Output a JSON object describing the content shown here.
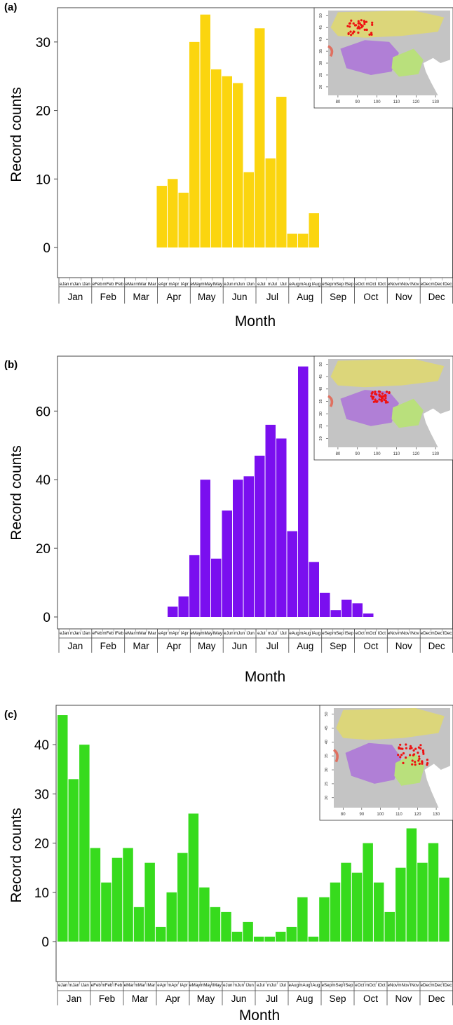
{
  "colors": {
    "series_a": "#FBD50F",
    "series_b": "#7A0FEF",
    "series_c": "#37DB1D",
    "map_background": "#ffffff",
    "map_land": "#c4c4c4",
    "map_yellow_region": "#dcd67a",
    "map_purple_region": "#b07fd6",
    "map_green_region": "#b9e07c",
    "map_points": "#ee1111",
    "map_coast_mark": "#e07060"
  },
  "chart_data": [
    {
      "panel_label": "(a)",
      "type": "bar",
      "xlabel": "Month",
      "ylabel": "Record counts",
      "ylim": [
        0,
        35
      ],
      "yticks": [
        0,
        10,
        20,
        30
      ],
      "months": [
        "Jan",
        "Feb",
        "Mar",
        "Apr",
        "May",
        "Jun",
        "Jul",
        "Aug",
        "Sep",
        "Oct",
        "Nov",
        "Dec"
      ],
      "periods": [
        "eJan",
        "mJan",
        "lJan",
        "eFeb",
        "mFeb",
        "lFeb",
        "eMar",
        "mMar",
        "lMar",
        "eApr",
        "mApr",
        "lApr",
        "eMay",
        "mMay",
        "lMay",
        "eJun",
        "mJun",
        "lJun",
        "eJul",
        "mJul",
        "lJul",
        "eAug",
        "mAug",
        "lAug",
        "eSep",
        "mSep",
        "lSep",
        "eOct",
        "mOct",
        "lOct",
        "eNov",
        "mNov",
        "lNov",
        "eDec",
        "mDec",
        "lDec"
      ],
      "values": [
        0,
        0,
        0,
        0,
        0,
        0,
        0,
        0,
        0,
        9,
        10,
        8,
        30,
        34,
        26,
        25,
        24,
        11,
        32,
        13,
        22,
        2,
        2,
        5,
        0,
        0,
        0,
        0,
        0,
        0,
        0,
        0,
        0,
        0,
        0,
        0
      ],
      "inset_map": {
        "x_ticks": [
          "80",
          "90",
          "100",
          "110",
          "120",
          "130"
        ],
        "y_ticks": [
          "50",
          "45",
          "40",
          "35",
          "30",
          "25",
          "20"
        ]
      }
    },
    {
      "panel_label": "(b)",
      "type": "bar",
      "xlabel": "Month",
      "ylabel": "Record counts",
      "ylim": [
        0,
        76
      ],
      "yticks": [
        0,
        20,
        40,
        60
      ],
      "months": [
        "Jan",
        "Feb",
        "Mar",
        "Apr",
        "May",
        "Jun",
        "Jul",
        "Aug",
        "Sep",
        "Oct",
        "Nov",
        "Dec"
      ],
      "periods": [
        "eJan",
        "mJan",
        "lJan",
        "eFeb",
        "mFeb",
        "lFeb",
        "eMar",
        "mMar",
        "lMar",
        "eApr",
        "mApr",
        "lApr",
        "eMay",
        "mMay",
        "lMay",
        "eJun",
        "mJun",
        "lJun",
        "eJul",
        "mJul",
        "lJul",
        "eAug",
        "mAug",
        "lAug",
        "eSep",
        "mSep",
        "lSep",
        "eOct",
        "mOct",
        "lOct",
        "eNov",
        "mNov",
        "lNov",
        "eDec",
        "mDec",
        "lDec"
      ],
      "values": [
        0,
        0,
        0,
        0,
        0,
        0,
        0,
        0,
        0,
        0,
        3,
        6,
        18,
        40,
        17,
        31,
        40,
        41,
        47,
        56,
        52,
        25,
        73,
        16,
        7,
        2,
        5,
        4,
        1,
        0,
        0,
        0,
        0,
        0,
        0,
        0
      ],
      "inset_map": {
        "x_ticks": [
          "80",
          "90",
          "100",
          "110",
          "120",
          "130"
        ],
        "y_ticks": [
          "50",
          "45",
          "40",
          "35",
          "30",
          "25",
          "20"
        ]
      }
    },
    {
      "panel_label": "(c)",
      "type": "bar",
      "xlabel": "Month",
      "ylabel": "Record counts",
      "ylim": [
        0,
        48
      ],
      "yticks": [
        0,
        10,
        20,
        30,
        40
      ],
      "months": [
        "Jan",
        "Feb",
        "Mar",
        "Apr",
        "May",
        "Jun",
        "Jul",
        "Aug",
        "Sep",
        "Oct",
        "Nov",
        "Dec"
      ],
      "periods": [
        "eJan",
        "mJan",
        "lJan",
        "eFeb",
        "mFeb",
        "lFeb",
        "eMar",
        "mMar",
        "lMar",
        "eApr",
        "mApr",
        "lApr",
        "eMay",
        "mMay",
        "lMay",
        "eJun",
        "mJun",
        "lJun",
        "eJul",
        "mJul",
        "lJul",
        "eAug",
        "mAug",
        "lAug",
        "eSep",
        "mSep",
        "lSep",
        "eOct",
        "mOct",
        "lOct",
        "eNov",
        "mNov",
        "lNov",
        "eDec",
        "mDec",
        "lDec"
      ],
      "values": [
        46,
        33,
        40,
        19,
        12,
        17,
        19,
        7,
        16,
        3,
        10,
        18,
        26,
        11,
        7,
        6,
        2,
        4,
        1,
        1,
        2,
        3,
        9,
        1,
        9,
        12,
        16,
        14,
        20,
        12,
        6,
        15,
        23,
        16,
        20,
        13
      ],
      "inset_map": {
        "x_ticks": [
          "80",
          "90",
          "100",
          "110",
          "120",
          "130"
        ],
        "y_ticks": [
          "50",
          "45",
          "40",
          "35",
          "30",
          "25",
          "20"
        ]
      }
    }
  ]
}
